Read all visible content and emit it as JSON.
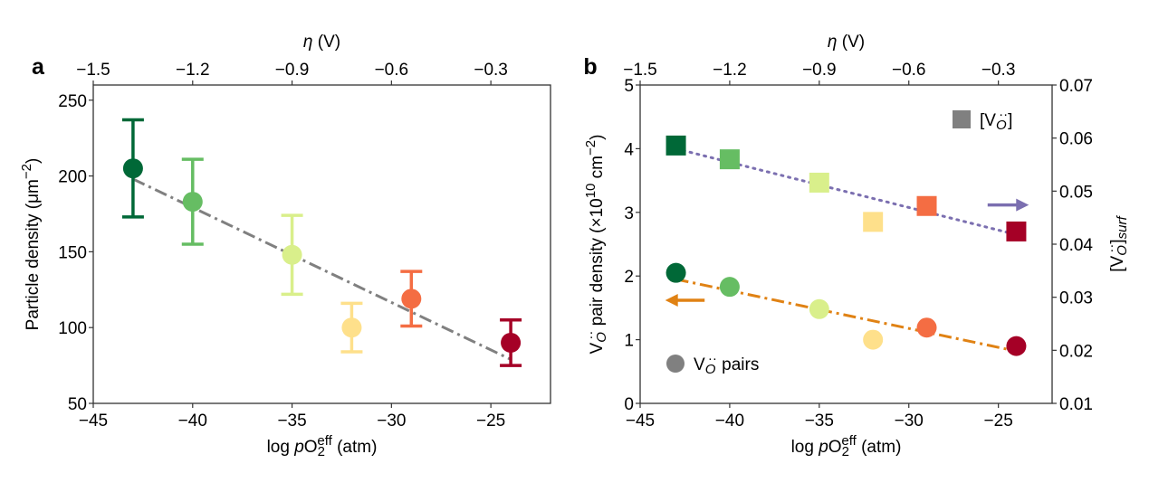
{
  "chart_data": [
    {
      "panel": "a",
      "type": "scatter",
      "xlabel": [
        {
          "t": "log "
        },
        {
          "t": "p",
          "i": 1
        },
        {
          "t": "O"
        },
        {
          "t": "2",
          "sub": 1
        },
        {
          "t": "eff",
          "supback": 1
        },
        {
          "t": " (atm)"
        }
      ],
      "ylabel": [
        {
          "t": "Particle density (μm"
        },
        {
          "t": "−2",
          "sup": 1
        },
        {
          "t": ")"
        }
      ],
      "top_xlabel": [
        {
          "t": "η",
          "i": 1
        },
        {
          "t": " (V)"
        }
      ],
      "xlim": [
        -45,
        -22
      ],
      "ylim": [
        50,
        260
      ],
      "xticks": [
        -45,
        -40,
        -35,
        -30,
        -25
      ],
      "xtick_labels": [
        "−45",
        "−40",
        "−35",
        "−30",
        "−25"
      ],
      "yticks": [
        50,
        100,
        150,
        200,
        250
      ],
      "ytick_labels": [
        "50",
        "100",
        "150",
        "200",
        "250"
      ],
      "top_xlim": [
        -1.5,
        -0.12
      ],
      "top_xticks": [
        -1.5,
        -1.2,
        -0.9,
        -0.6,
        -0.3
      ],
      "top_xtick_labels": [
        "−1.5",
        "−1.2",
        "−0.9",
        "−0.6",
        "−0.3"
      ],
      "grid": false,
      "points": [
        {
          "x": -43,
          "y": 205,
          "err_low": 173,
          "err_high": 237,
          "color": "#006837"
        },
        {
          "x": -40,
          "y": 183,
          "err_low": 155,
          "err_high": 211,
          "color": "#66bd63"
        },
        {
          "x": -35,
          "y": 148,
          "err_low": 122,
          "err_high": 174,
          "color": "#d9ef8b"
        },
        {
          "x": -32,
          "y": 100,
          "err_low": 84,
          "err_high": 116,
          "color": "#fee08b"
        },
        {
          "x": -29,
          "y": 119,
          "err_low": 101,
          "err_high": 137,
          "color": "#f46d43"
        },
        {
          "x": -24,
          "y": 90,
          "err_low": 75,
          "err_high": 105,
          "color": "#a50026"
        }
      ],
      "fit_line": {
        "x": [
          -43,
          -24
        ],
        "y": [
          198,
          79
        ],
        "color": "#808080",
        "style": "dash-dot"
      }
    },
    {
      "panel": "b",
      "type": "scatter",
      "xlabel": [
        {
          "t": "log "
        },
        {
          "t": "p",
          "i": 1
        },
        {
          "t": "O"
        },
        {
          "t": "2",
          "sub": 1
        },
        {
          "t": "eff",
          "supback": 1
        },
        {
          "t": " (atm)"
        }
      ],
      "ylabel": [
        {
          "t": "V"
        },
        {
          "t": "O",
          "sub": 1,
          "i": 1
        },
        {
          "t": "··",
          "supback": 1
        },
        {
          "t": " pair density (×10"
        },
        {
          "t": "10",
          "sup": 1
        },
        {
          "t": " cm"
        },
        {
          "t": "−2",
          "sup": 1
        },
        {
          "t": ")"
        }
      ],
      "y2label": [
        {
          "t": "[V"
        },
        {
          "t": "O",
          "sub": 1,
          "i": 1
        },
        {
          "t": "··",
          "supback": 1
        },
        {
          "t": "]"
        },
        {
          "t": "surf",
          "sub": 1,
          "i": 1
        }
      ],
      "top_xlabel": [
        {
          "t": "η",
          "i": 1
        },
        {
          "t": " (V)"
        }
      ],
      "xlim": [
        -45,
        -22
      ],
      "ylim": [
        0,
        5
      ],
      "y2lim": [
        0.01,
        0.07
      ],
      "xticks": [
        -45,
        -40,
        -35,
        -30,
        -25
      ],
      "xtick_labels": [
        "−45",
        "−40",
        "−35",
        "−30",
        "−25"
      ],
      "yticks": [
        0,
        1,
        2,
        3,
        4,
        5
      ],
      "ytick_labels": [
        "0",
        "1",
        "2",
        "3",
        "4",
        "5"
      ],
      "y2ticks": [
        0.01,
        0.02,
        0.03,
        0.04,
        0.05,
        0.06,
        0.07
      ],
      "y2tick_labels": [
        "0.01",
        "0.02",
        "0.03",
        "0.04",
        "0.05",
        "0.06",
        "0.07"
      ],
      "top_xlim": [
        -1.5,
        -0.12
      ],
      "top_xticks": [
        -1.5,
        -1.2,
        -0.9,
        -0.6,
        -0.3
      ],
      "top_xtick_labels": [
        "−1.5",
        "−1.2",
        "−0.9",
        "−0.6",
        "−0.3"
      ],
      "grid": false,
      "series": [
        {
          "name_segments": [
            {
              "t": "[V"
            },
            {
              "t": "O",
              "sub": 1,
              "i": 1
            },
            {
              "t": "··",
              "supback": 1
            },
            {
              "t": "]"
            }
          ],
          "marker": "square",
          "axis": "right",
          "x": [
            -43,
            -40,
            -35,
            -32,
            -29,
            -24
          ],
          "y": [
            0.0586,
            0.056,
            0.0516,
            0.0442,
            0.0472,
            0.0424
          ],
          "colors": [
            "#006837",
            "#66bd63",
            "#d9ef8b",
            "#fee08b",
            "#f46d43",
            "#a50026"
          ],
          "fit_line": {
            "x": [
              -43,
              -24
            ],
            "y": [
              0.058,
              0.0418
            ],
            "color": "#7b6fb0",
            "style": "dotted"
          },
          "arrow": {
            "direction": "right",
            "x": [
              -25.6,
              -23.3
            ],
            "y": 0.0474,
            "color": "#7b6fb0"
          },
          "legend": "top-right"
        },
        {
          "name_segments": [
            {
              "t": "V"
            },
            {
              "t": "O",
              "sub": 1,
              "i": 1
            },
            {
              "t": "··",
              "supback": 1
            },
            {
              "t": " pairs"
            }
          ],
          "marker": "circle",
          "axis": "left",
          "x": [
            -43,
            -40,
            -35,
            -32,
            -29,
            -24
          ],
          "y": [
            2.05,
            1.83,
            1.48,
            1.0,
            1.19,
            0.9
          ],
          "colors": [
            "#006837",
            "#66bd63",
            "#d9ef8b",
            "#fee08b",
            "#f46d43",
            "#a50026"
          ],
          "fit_line": {
            "x": [
              -43,
              -24
            ],
            "y": [
              1.95,
              0.82
            ],
            "color": "#e08214",
            "style": "dash-dot"
          },
          "arrow": {
            "direction": "left",
            "x": [
              -41.4,
              -43.6
            ],
            "y": 1.62,
            "color": "#e08214"
          },
          "legend": "bottom-left"
        }
      ],
      "legend_marker_color": "#808080"
    }
  ]
}
